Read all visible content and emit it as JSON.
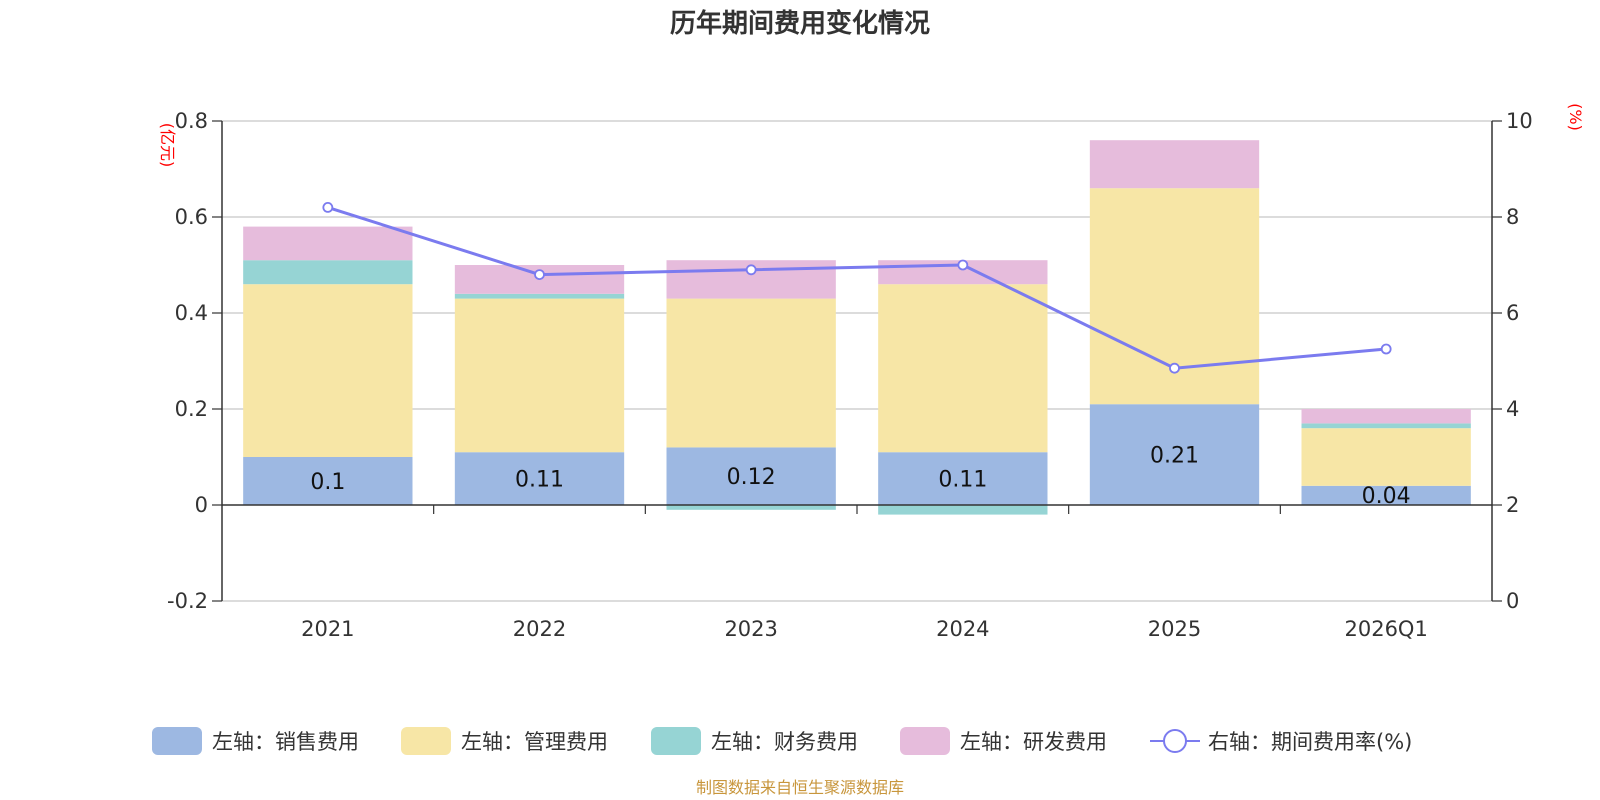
{
  "chart_data": {
    "type": "bar",
    "title": "历年期间费用变化情况",
    "left_unit": "(亿元)",
    "right_unit": "(%)",
    "categories": [
      "2021",
      "2022",
      "2023",
      "2024",
      "2025",
      "2026Q1"
    ],
    "left_axis": {
      "ylim": [
        -0.2,
        0.8
      ],
      "ticks": [
        "0.8",
        "0.6",
        "0.4",
        "0.2",
        "0",
        "-0.2"
      ],
      "tick_values": [
        0.8,
        0.6,
        0.4,
        0.2,
        0,
        -0.2
      ]
    },
    "right_axis": {
      "ylim": [
        0,
        10
      ],
      "ticks": [
        "10",
        "8",
        "6",
        "4",
        "2",
        "0"
      ],
      "tick_values": [
        10,
        8,
        6,
        4,
        2,
        0
      ]
    },
    "series": [
      {
        "name": "左轴：销售费用",
        "color": "#9db8e2",
        "values": [
          0.1,
          0.11,
          0.12,
          0.11,
          0.21,
          0.04
        ],
        "labels": [
          "0.1",
          "0.11",
          "0.12",
          "0.11",
          "0.21",
          "0.04"
        ]
      },
      {
        "name": "左轴：管理费用",
        "color": "#f7e6a6",
        "values": [
          0.36,
          0.32,
          0.31,
          0.35,
          0.45,
          0.12
        ]
      },
      {
        "name": "左轴：财务费用",
        "color": "#96d4d4",
        "values": [
          0.05,
          0.01,
          -0.01,
          -0.02,
          0.0,
          0.01
        ]
      },
      {
        "name": "左轴：研发费用",
        "color": "#e6bcdc",
        "values": [
          0.07,
          0.06,
          0.08,
          0.05,
          0.1,
          0.03
        ]
      }
    ],
    "line": {
      "name": "右轴：期间费用率(%)",
      "color": "#7b7bef",
      "values": [
        8.2,
        6.8,
        6.9,
        7.0,
        4.85,
        5.25
      ]
    },
    "source": "制图数据来自恒生聚源数据库"
  }
}
